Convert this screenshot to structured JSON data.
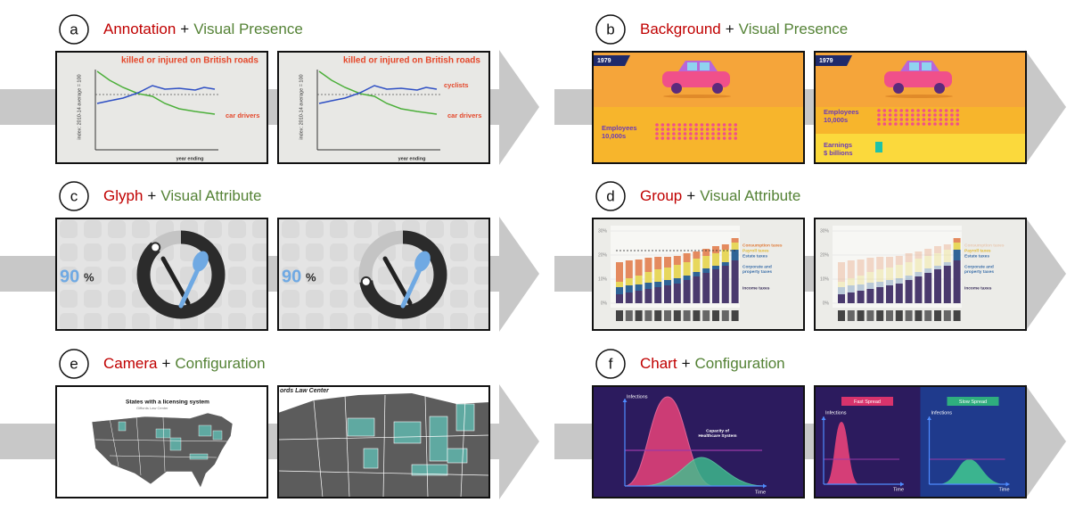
{
  "panels": [
    {
      "letter": "a",
      "feature": "Annotation",
      "connector": "+",
      "effect": "Visual Presence",
      "frames": [
        {
          "title": "killed or injured on British roads",
          "y_axis": "index: 2010-14 average = 100",
          "x_axis": "year ending",
          "labels": [
            "car drivers"
          ]
        },
        {
          "title": "killed or injured on British roads",
          "y_axis": "index: 2010-14 average = 100",
          "x_axis": "year ending",
          "labels": [
            "cyclists",
            "car drivers"
          ]
        }
      ]
    },
    {
      "letter": "b",
      "feature": "Background",
      "connector": "+",
      "effect": "Visual Presence",
      "frames": [
        {
          "tag": "1979",
          "groups": [
            [
              "Employees",
              "10,000s"
            ]
          ]
        },
        {
          "tag": "1979",
          "groups": [
            [
              "Employees",
              "10,000s"
            ],
            [
              "Earnings",
              "$ billions"
            ]
          ]
        }
      ]
    },
    {
      "letter": "c",
      "feature": "Glyph",
      "connector": "+",
      "effect": "Visual Attribute",
      "frames": [
        {
          "number": "90",
          "unit": "%"
        },
        {
          "number": "90",
          "unit": "%"
        }
      ]
    },
    {
      "letter": "d",
      "feature": "Group",
      "connector": "+",
      "effect": "Visual Attribute",
      "frames": [
        {
          "yticks": [
            "30%",
            "20%",
            "10%",
            "0%"
          ],
          "legend": [
            [
              "Consumption taxes"
            ],
            [
              "Payroll taxes"
            ],
            [
              "Estate taxes"
            ],
            [
              "Corporate and",
              "property taxes"
            ],
            [
              "Income taxes"
            ]
          ]
        },
        {
          "yticks": [
            "30%",
            "20%",
            "10%",
            "0%"
          ],
          "legend": [
            [
              "Consumption taxes"
            ],
            [
              "Payroll taxes"
            ],
            [
              "Estate taxes"
            ],
            [
              "Corporate and",
              "property taxes"
            ],
            [
              "Income taxes"
            ]
          ]
        }
      ]
    },
    {
      "letter": "e",
      "feature": "Camera",
      "connector": "+",
      "effect": "Configuration",
      "frames": [
        {
          "title": "States with a licensing system",
          "source": "Giffords Law Center"
        },
        {
          "source": "ords Law Center"
        }
      ]
    },
    {
      "letter": "f",
      "feature": "Chart",
      "connector": "+",
      "effect": "Configuration",
      "frames": [
        {
          "y_axis": "Infections",
          "x_axis": "Time",
          "note": [
            "Capacity of",
            "Healthcare System"
          ]
        },
        {
          "halves": [
            {
              "title": "Fast Spread",
              "y_axis": "Infections",
              "x_axis": "Time"
            },
            {
              "title": "Slow Spread",
              "y_axis": "Infections",
              "x_axis": "Time"
            }
          ]
        }
      ]
    }
  ]
}
